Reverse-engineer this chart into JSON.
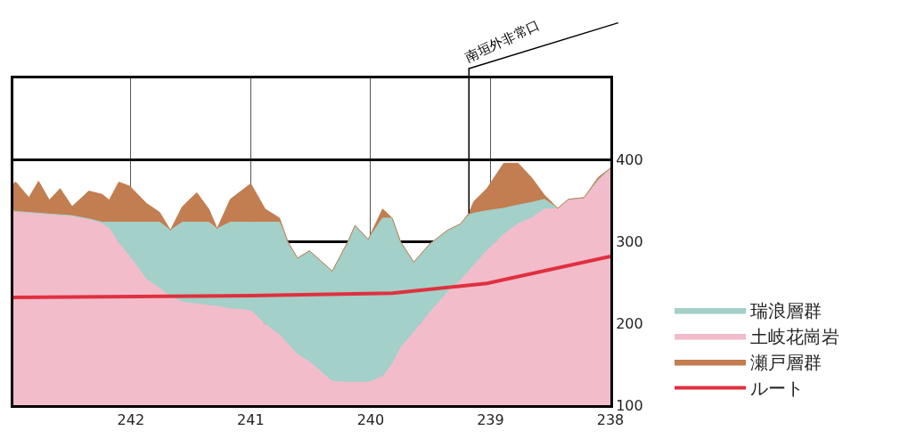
{
  "chart_data": {
    "type": "area",
    "x": [
      242.98,
      242.96,
      242.85,
      242.77,
      242.68,
      242.59,
      242.49,
      242.35,
      242.24,
      242.18,
      242.1,
      242.01,
      241.87,
      241.76,
      241.67,
      241.57,
      241.45,
      241.35,
      241.28,
      241.17,
      241.0,
      240.88,
      240.76,
      240.69,
      240.61,
      240.51,
      240.32,
      240.19,
      240.13,
      240.02,
      239.9,
      239.82,
      239.75,
      239.64,
      239.51,
      239.36,
      239.25,
      239.18,
      239.14,
      239.03,
      238.89,
      238.77,
      238.66,
      238.55,
      238.44,
      238.35,
      238.22,
      238.1,
      238.0
    ],
    "series": [
      {
        "name": "瑞浪層群",
        "color": "#a3d0c8",
        "values": [
          338,
          337,
          336,
          335,
          334,
          333,
          332,
          328,
          324,
          324,
          324,
          324,
          324,
          324,
          314,
          324,
          324,
          324,
          316,
          324,
          324,
          324,
          324,
          300,
          280,
          289,
          264,
          300,
          320,
          303,
          329,
          329,
          300,
          275,
          297,
          314,
          322,
          333,
          335,
          338,
          341,
          345,
          348,
          352,
          341,
          352,
          354,
          376,
          390
        ]
      },
      {
        "name": "土岐花崗岩",
        "color": "#f2bccb",
        "values": [
          338,
          337,
          336,
          335,
          334,
          333,
          332,
          328,
          322,
          316,
          298,
          282,
          254,
          243,
          233,
          226,
          224,
          222,
          221,
          218,
          216,
          199,
          186,
          175,
          162,
          153,
          129,
          128,
          128,
          128,
          135,
          150,
          170,
          189,
          213,
          238,
          253,
          264,
          271,
          289,
          309,
          322,
          329,
          340,
          341,
          351,
          354,
          376,
          390
        ]
      },
      {
        "name": "瀬戸層群",
        "color": "#c27d50",
        "values": [
          371,
          373,
          354,
          374,
          351,
          365,
          343,
          362,
          358,
          351,
          373,
          368,
          347,
          336,
          314,
          343,
          360,
          340,
          316,
          352,
          371,
          340,
          329,
          300,
          280,
          289,
          264,
          300,
          320,
          303,
          340,
          329,
          300,
          275,
          297,
          314,
          322,
          335,
          349,
          365,
          396,
          396,
          379,
          357,
          341,
          352,
          354,
          379,
          390
        ]
      },
      {
        "name": "ルート",
        "type": "line",
        "color": "#e0303f",
        "x": [
          242.98,
          241.0,
          239.82,
          239.03,
          238.0
        ],
        "values": [
          232,
          234,
          237,
          249,
          282
        ]
      }
    ],
    "xlim": [
      242.98,
      238
    ],
    "xticks": [
      242,
      241,
      240,
      239,
      238
    ],
    "ylim": [
      100,
      500
    ],
    "yticks": [
      100,
      200,
      300,
      400
    ],
    "grid": true,
    "legend": "bottom right",
    "annotations": [
      {
        "text": "南垣外非常口",
        "x": 239.18,
        "y": 335
      }
    ]
  }
}
